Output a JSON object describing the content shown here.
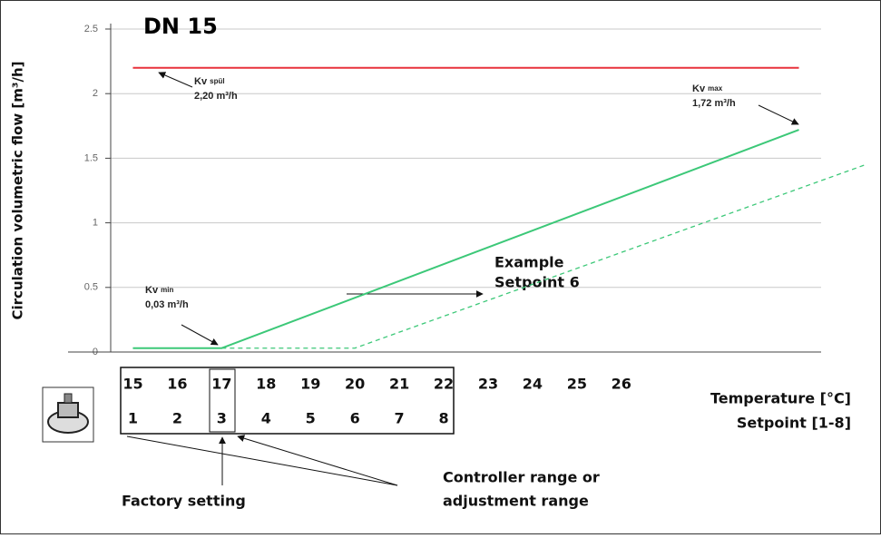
{
  "chart_data": {
    "type": "line",
    "title": "DN 15",
    "ylabel": "Circulation volumetric flow [m³/h]",
    "xlabel": "Temperature [°C]",
    "setpoint_label": "Setpoint [1-8]",
    "ylim": [
      0,
      2.5
    ],
    "yticks": [
      0,
      0.5,
      1,
      1.5,
      2,
      2.5
    ],
    "xlim": [
      14.5,
      30.5
    ],
    "xticks": [
      15,
      16,
      17,
      18,
      19,
      20,
      21,
      22,
      23,
      24,
      25,
      26
    ],
    "setpoints": [
      "1",
      "2",
      "3",
      "4",
      "5",
      "6",
      "7",
      "8"
    ],
    "grid": true,
    "series": [
      {
        "color": "#e8323c",
        "dashed": false,
        "x": [
          15,
          30
        ],
        "values": [
          2.2,
          2.2
        ]
      },
      {
        "color": "#3cc878",
        "dashed": false,
        "x": [
          15,
          17,
          30
        ],
        "values": [
          0.03,
          0.03,
          1.72
        ]
      },
      {
        "color": "#3cc878",
        "dashed": true,
        "x": [
          17,
          20,
          31.5
        ],
        "values": [
          0.03,
          0.03,
          1.45
        ]
      }
    ],
    "annotations": {
      "kv_spul": {
        "main": "Kv",
        "sub": "spül",
        "value": "2,20 m³/h"
      },
      "kv_max": {
        "main": "Kv",
        "sub": "max",
        "value": "1,72 m³/h"
      },
      "kv_min": {
        "main": "Kv",
        "sub": "min",
        "value": "0,03 m³/h"
      },
      "example": [
        "Example",
        "Setpoint 6"
      ],
      "controller_range": [
        "Controller range or",
        "adjustment range"
      ],
      "factory_setting": "Factory setting"
    }
  }
}
